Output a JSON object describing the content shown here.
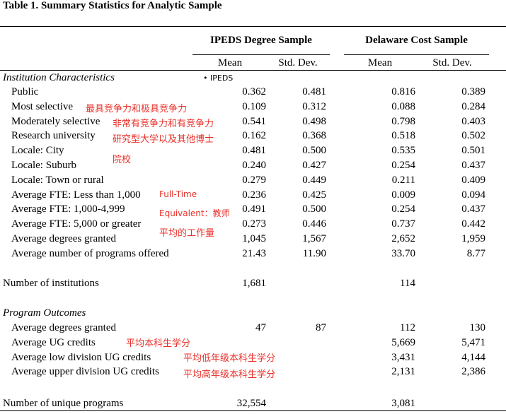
{
  "title": "Table 1. Summary Statistics for Analytic Sample",
  "groups": [
    "IPEDS Degree Sample",
    "Delaware Cost Sample"
  ],
  "subheaders": [
    "Mean",
    "Std. Dev.",
    "Mean",
    "Std. Dev."
  ],
  "bullet_note": "IPEDS",
  "sections": {
    "institution": "Institution Characteristics",
    "program": "Program Outcomes"
  },
  "rows": [
    {
      "label": "Public",
      "v": [
        "0.362",
        "0.481",
        "0.816",
        "0.389"
      ]
    },
    {
      "label": "Most selective",
      "v": [
        "0.109",
        "0.312",
        "0.088",
        "0.284"
      ]
    },
    {
      "label": "Moderately selective",
      "v": [
        "0.541",
        "0.498",
        "0.798",
        "0.403"
      ]
    },
    {
      "label": "Research university",
      "v": [
        "0.162",
        "0.368",
        "0.518",
        "0.502"
      ]
    },
    {
      "label": "Locale: City",
      "v": [
        "0.481",
        "0.500",
        "0.535",
        "0.501"
      ]
    },
    {
      "label": "Locale: Suburb",
      "v": [
        "0.240",
        "0.427",
        "0.254",
        "0.437"
      ]
    },
    {
      "label": "Locale: Town or rural",
      "v": [
        "0.279",
        "0.449",
        "0.211",
        "0.409"
      ]
    },
    {
      "label": "Average FTE: Less than 1,000",
      "v": [
        "0.236",
        "0.425",
        "0.009",
        "0.094"
      ]
    },
    {
      "label": "Average FTE: 1,000-4,999",
      "v": [
        "0.491",
        "0.500",
        "0.254",
        "0.437"
      ]
    },
    {
      "label": "Average FTE: 5,000 or greater",
      "v": [
        "0.273",
        "0.446",
        "0.737",
        "0.442"
      ]
    },
    {
      "label": "Average degrees granted",
      "v": [
        "1,045",
        "1,567",
        "2,652",
        "1,959"
      ]
    },
    {
      "label": "Average number of programs offered",
      "v": [
        "21.43",
        "11.90",
        "33.70",
        "8.77"
      ]
    }
  ],
  "institutions_row": {
    "label": "Number of institutions",
    "v": [
      "1,681",
      "",
      "114",
      ""
    ]
  },
  "program_rows": [
    {
      "label": "Average degrees granted",
      "v": [
        "47",
        "87",
        "112",
        "130"
      ]
    },
    {
      "label": "Average UG credits",
      "v": [
        "",
        "",
        "5,669",
        "5,471"
      ]
    },
    {
      "label": "Average low division UG credits",
      "v": [
        "",
        "",
        "3,431",
        "4,144"
      ]
    },
    {
      "label": "Average upper division UG credits",
      "v": [
        "",
        "",
        "2,131",
        "2,386"
      ]
    }
  ],
  "programs_row": {
    "label": "Number of unique programs",
    "v": [
      "32,554",
      "",
      "3,081",
      ""
    ]
  },
  "annotations": {
    "most_selective": "最具竞争力和极具竞争力",
    "moderately_selective": "非常有竞争力和有竞争力",
    "research_1": "研究型大学以及其他博士",
    "research_2": "院校",
    "fte_1": "Full-Time",
    "fte_2": "Equivalent：教师",
    "fte_3": "平均的工作量",
    "ug_credits": "平均本科生学分",
    "low_div": "平均低年级本科生学分",
    "upper_div": "平均高年级本科生学分"
  },
  "annotation_color": "#e8302a"
}
